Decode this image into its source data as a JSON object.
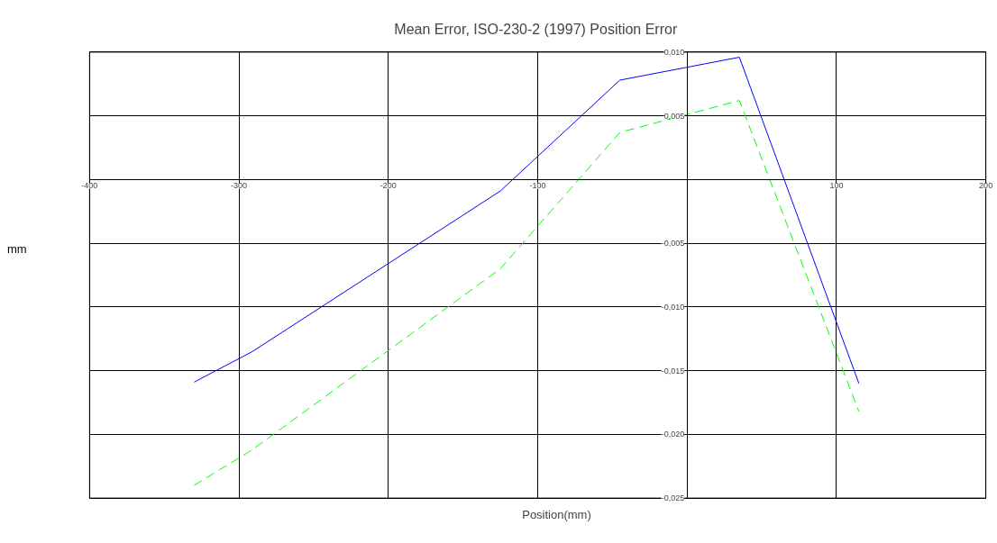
{
  "chart_data": {
    "type": "line",
    "title": "Mean Error, ISO-230-2 (1997)  Position Error",
    "xlabel": "Position(mm)",
    "ylabel": "mm",
    "x": [
      -330,
      -291,
      -125,
      -45,
      35,
      115
    ],
    "series": [
      {
        "color": "#0000ff",
        "line_style": "solid",
        "values": [
          -0.0159,
          -0.0135,
          -0.0009,
          0.0078,
          0.0096,
          -0.016
        ]
      },
      {
        "color": "#00ff00",
        "line_style": "dashed",
        "values": [
          -0.024,
          -0.0212,
          -0.007,
          0.0037,
          0.0062,
          -0.0182
        ]
      }
    ],
    "xlim": [
      -400,
      200
    ],
    "xticks": [
      -400,
      -300,
      -200,
      -100,
      100,
      200
    ],
    "ylim": [
      -0.025,
      0.01
    ],
    "yticks": [
      {
        "value": 0.01,
        "label": "0,010"
      },
      {
        "value": 0.005,
        "label": "0,005"
      },
      {
        "value": -0.005,
        "label": "-0,005"
      },
      {
        "value": -0.01,
        "label": "-0,010"
      },
      {
        "value": -0.015,
        "label": "-0,015"
      },
      {
        "value": -0.02,
        "label": "-0,020"
      },
      {
        "value": -0.025,
        "label": "-0,025"
      }
    ],
    "grid": true,
    "marker": "none"
  }
}
